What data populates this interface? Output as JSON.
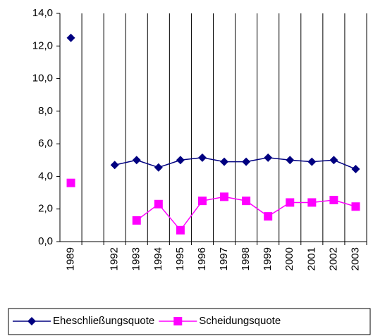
{
  "chart_data": {
    "type": "line",
    "categories": [
      "1989",
      null,
      "1992",
      "1993",
      "1994",
      "1995",
      "1996",
      "1997",
      "1998",
      "1999",
      "2000",
      "2001",
      "2002",
      "2003"
    ],
    "series": [
      {
        "name": "Eheschließungsquote",
        "color": "#000080",
        "marker": "diamond",
        "values": [
          12.5,
          null,
          4.7,
          5.0,
          4.55,
          5.0,
          5.15,
          4.9,
          4.9,
          5.15,
          5.0,
          4.9,
          5.0,
          4.45
        ]
      },
      {
        "name": "Scheidungsquote",
        "color": "#ff00ff",
        "marker": "square",
        "values": [
          3.6,
          null,
          null,
          1.3,
          2.3,
          0.7,
          2.5,
          2.75,
          2.5,
          1.55,
          2.4,
          2.4,
          2.55,
          2.15
        ]
      }
    ],
    "ylim": [
      0,
      14
    ],
    "yticks": [
      {
        "value": 0,
        "label": "0,0"
      },
      {
        "value": 2,
        "label": "2,0"
      },
      {
        "value": 4,
        "label": "4,0"
      },
      {
        "value": 6,
        "label": "6,0"
      },
      {
        "value": 8,
        "label": "8,0"
      },
      {
        "value": 10,
        "label": "10,0"
      },
      {
        "value": 12,
        "label": "12,0"
      },
      {
        "value": 14,
        "label": "14,0"
      }
    ],
    "legend_position": "bottom"
  }
}
